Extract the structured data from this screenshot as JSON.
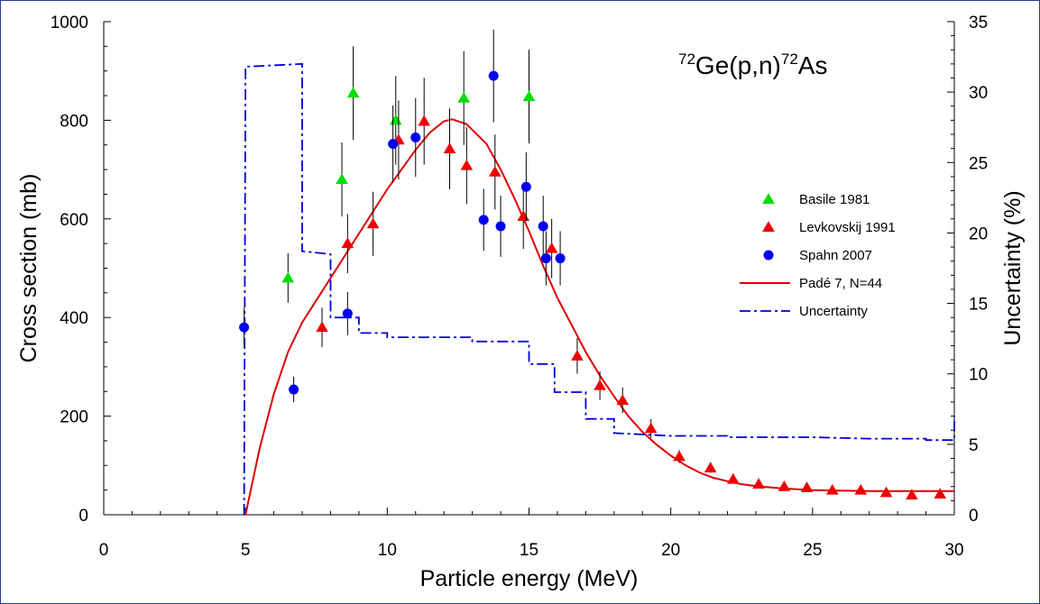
{
  "chart_data": {
    "type": "scatter",
    "title": "72Ge(p,n)72As",
    "title_parts": {
      "mass_a": "72",
      "target": "Ge(p,n)",
      "mass_b": "72",
      "product": "As"
    },
    "xlabel": "Particle energy (MeV)",
    "ylabel": "Cross section (mb)",
    "y2label": "Uncertainty (%)",
    "xlim": [
      0,
      30
    ],
    "ylim": [
      0,
      1000
    ],
    "y2lim": [
      0,
      35
    ],
    "x_ticks": [
      "0",
      "5",
      "10",
      "15",
      "20",
      "25",
      "30"
    ],
    "y_ticks": [
      "0",
      "200",
      "400",
      "600",
      "800",
      "1000"
    ],
    "y2_ticks": [
      "0",
      "5",
      "10",
      "15",
      "20",
      "25",
      "30",
      "35"
    ],
    "grid": false,
    "legend_position": "right",
    "series": [
      {
        "name": "Basile 1981",
        "kind": "points",
        "marker": "triangle",
        "color": "#00dd00",
        "points": [
          {
            "x": 6.5,
            "y": 480,
            "err": 50
          },
          {
            "x": 8.4,
            "y": 680,
            "err": 75
          },
          {
            "x": 8.8,
            "y": 855,
            "err": 95
          },
          {
            "x": 10.3,
            "y": 800,
            "err": 90
          },
          {
            "x": 12.7,
            "y": 845,
            "err": 95
          },
          {
            "x": 15.0,
            "y": 848,
            "err": 95
          }
        ]
      },
      {
        "name": "Levkovskij 1991",
        "kind": "points",
        "marker": "triangle",
        "color": "#ee0000",
        "points": [
          {
            "x": 7.7,
            "y": 380,
            "err": 40
          },
          {
            "x": 8.6,
            "y": 550,
            "err": 60
          },
          {
            "x": 9.5,
            "y": 590,
            "err": 65
          },
          {
            "x": 10.4,
            "y": 760,
            "err": 80
          },
          {
            "x": 11.3,
            "y": 798,
            "err": 88
          },
          {
            "x": 12.2,
            "y": 742,
            "err": 82
          },
          {
            "x": 12.8,
            "y": 708,
            "err": 78
          },
          {
            "x": 13.8,
            "y": 695,
            "err": 76
          },
          {
            "x": 14.8,
            "y": 605,
            "err": 66
          },
          {
            "x": 15.8,
            "y": 540,
            "err": 60
          },
          {
            "x": 16.7,
            "y": 322,
            "err": 36
          },
          {
            "x": 17.5,
            "y": 262,
            "err": 29
          },
          {
            "x": 18.3,
            "y": 232,
            "err": 26
          },
          {
            "x": 19.3,
            "y": 175,
            "err": 19
          },
          {
            "x": 20.3,
            "y": 118,
            "err": 13
          },
          {
            "x": 21.4,
            "y": 95,
            "err": 10
          },
          {
            "x": 22.2,
            "y": 72,
            "err": 8
          },
          {
            "x": 23.1,
            "y": 62,
            "err": 7
          },
          {
            "x": 24.0,
            "y": 57,
            "err": 6
          },
          {
            "x": 24.8,
            "y": 55,
            "err": 6
          },
          {
            "x": 25.7,
            "y": 50,
            "err": 5
          },
          {
            "x": 26.7,
            "y": 50,
            "err": 5
          },
          {
            "x": 27.6,
            "y": 45,
            "err": 5
          },
          {
            "x": 28.5,
            "y": 40,
            "err": 4
          },
          {
            "x": 29.5,
            "y": 42,
            "err": 4
          }
        ]
      },
      {
        "name": "Spahn 2007",
        "kind": "points",
        "marker": "circle",
        "color": "#0000ee",
        "points": [
          {
            "x": 4.95,
            "y": 380,
            "err": 40
          },
          {
            "x": 6.7,
            "y": 254,
            "err": 26
          },
          {
            "x": 8.6,
            "y": 408,
            "err": 44
          },
          {
            "x": 10.2,
            "y": 752,
            "err": 78
          },
          {
            "x": 11.0,
            "y": 765,
            "err": 80
          },
          {
            "x": 13.4,
            "y": 598,
            "err": 63
          },
          {
            "x": 13.75,
            "y": 890,
            "err": 94
          },
          {
            "x": 14.0,
            "y": 585,
            "err": 62
          },
          {
            "x": 14.9,
            "y": 665,
            "err": 70
          },
          {
            "x": 15.5,
            "y": 585,
            "err": 62
          },
          {
            "x": 15.6,
            "y": 520,
            "err": 55
          },
          {
            "x": 16.1,
            "y": 520,
            "err": 55
          }
        ]
      },
      {
        "name": "Padé 7, N=44",
        "kind": "line",
        "color": "#dd0000",
        "x": [
          5.0,
          5.5,
          6.0,
          6.5,
          7.0,
          8.0,
          9.0,
          10.0,
          11.0,
          11.5,
          12.0,
          12.3,
          12.8,
          13.5,
          14.0,
          14.5,
          15.0,
          15.5,
          16.0,
          16.5,
          17.0,
          17.5,
          18.0,
          18.5,
          19.0,
          19.5,
          20.0,
          20.5,
          21.0,
          21.5,
          22.0,
          22.5,
          23.0,
          24.0,
          25.0,
          26.0,
          27.0,
          28.0,
          29.0,
          30.0
        ],
        "y": [
          0,
          135,
          245,
          330,
          390,
          480,
          570,
          660,
          740,
          775,
          798,
          802,
          792,
          752,
          700,
          640,
          575,
          505,
          440,
          385,
          330,
          282,
          240,
          200,
          168,
          142,
          120,
          101,
          86,
          75,
          68,
          62,
          58,
          53,
          50,
          49,
          48,
          48,
          48,
          48
        ]
      },
      {
        "name": "Uncertainty",
        "kind": "step",
        "axis": "y2",
        "color": "#0000dd",
        "x": [
          4.95,
          4.95,
          5.0,
          7.0,
          7.0,
          8.0,
          8.0,
          9.0,
          9.0,
          10.0,
          10.0,
          12.0,
          12.0,
          13.0,
          13.0,
          14.8,
          14.8,
          15.0,
          15.0,
          15.9,
          15.9,
          17.0,
          17.0,
          18.0,
          18.0,
          19.0,
          19.0,
          20.0,
          20.0,
          22.0,
          22.0,
          25.0,
          25.0,
          27.0,
          27.0,
          29.0,
          29.0,
          30.0,
          30.0
        ],
        "y": [
          0,
          0,
          31.8,
          32.0,
          18.7,
          18.5,
          14.0,
          14.0,
          12.9,
          12.9,
          12.6,
          12.6,
          12.6,
          12.6,
          12.3,
          12.3,
          12.3,
          12.3,
          10.7,
          10.7,
          8.7,
          8.7,
          6.8,
          6.8,
          5.8,
          5.7,
          5.7,
          5.6,
          5.6,
          5.6,
          5.5,
          5.5,
          5.5,
          5.4,
          5.4,
          5.4,
          5.3,
          5.3,
          7.0
        ]
      }
    ]
  }
}
